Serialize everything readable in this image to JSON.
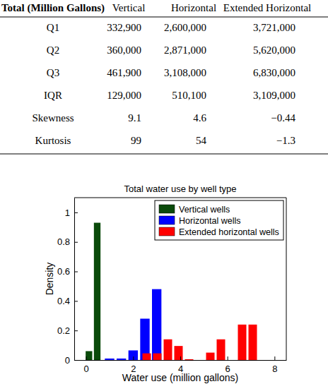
{
  "table": {
    "header": [
      "Total (Million Gallons)",
      "Vertical",
      "Horizontal",
      "Extended Horizontal"
    ],
    "rows": [
      [
        "Q1",
        "332,900",
        "2,600,000",
        "3,721,000"
      ],
      [
        "Q2",
        "360,000",
        "2,871,000",
        "5,620,000"
      ],
      [
        "Q3",
        "461,900",
        "3,108,000",
        "6,830,000"
      ],
      [
        "IQR",
        "129,000",
        "510,100",
        "3,109,000"
      ],
      [
        "Skewness",
        "9.1",
        "4.6",
        "−0.44"
      ],
      [
        "Kurtosis",
        "99",
        "54",
        "−1.3"
      ]
    ]
  },
  "chart_data": {
    "type": "histogram",
    "title": "Total water use by well type",
    "x_label": "Water use (million gallons)",
    "y_label": "Density",
    "xlim": [
      -0.5,
      8.5
    ],
    "xticks": [
      0,
      2,
      4,
      6,
      8
    ],
    "ylim": [
      0,
      1.1
    ],
    "yticks": [
      0,
      0.2,
      0.4,
      0.6,
      0.8,
      1
    ],
    "legend": "upper right",
    "series": [
      {
        "name": "Vertical wells",
        "color": "#0a4a0a",
        "bins": [
          -0.05,
          0.3,
          0.65
        ],
        "values": [
          0.06,
          0.93
        ]
      },
      {
        "name": "Horizontal wells",
        "color": "#0000ff",
        "bins": [
          0.75,
          1.25,
          1.75,
          2.25,
          2.75,
          3.25
        ],
        "values": [
          0.01,
          0.01,
          0.065,
          0.28,
          0.48
        ]
      },
      {
        "name": "Extended horizontal wells",
        "color": "#ff0000",
        "bins": [
          2.35,
          2.8,
          3.25,
          3.7,
          4.15,
          4.6,
          5.05,
          5.5,
          5.95,
          6.4,
          6.85,
          7.3
        ],
        "values": [
          0.045,
          0.045,
          0.14,
          0.095,
          0.005,
          0,
          0.05,
          0.14,
          0,
          0.24,
          0.24
        ]
      }
    ]
  }
}
